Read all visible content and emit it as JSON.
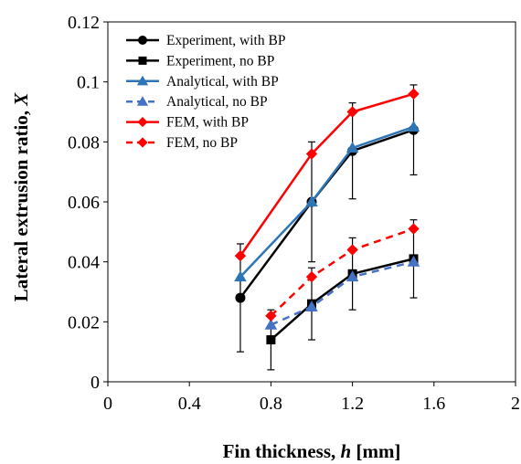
{
  "chart_data": {
    "type": "line",
    "xlabel": {
      "prefix": "Fin thickness, ",
      "var": "h",
      "suffix": " [mm]"
    },
    "ylabel": {
      "prefix": "Lateral extrusion ratio, ",
      "var": "X",
      "suffix": ""
    },
    "xlim": [
      0,
      2
    ],
    "ylim": [
      0,
      0.12
    ],
    "xticks": [
      0,
      0.4,
      0.8,
      1.2,
      1.6,
      2
    ],
    "xtick_labels": [
      "0",
      "0.4",
      "0.8",
      "1.2",
      "1.6",
      "2"
    ],
    "yticks": [
      0,
      0.02,
      0.04,
      0.06,
      0.08,
      0.1,
      0.12
    ],
    "ytick_labels": [
      "0",
      "0.02",
      "0.04",
      "0.06",
      "0.08",
      "0.1",
      "0.12"
    ],
    "grid": false,
    "legend_position": "top-left",
    "series": [
      {
        "name": "Experiment, with BP",
        "color": "#000000",
        "marker": "circle",
        "dashed": false,
        "x": [
          0.65,
          1.0,
          1.2,
          1.5
        ],
        "y": [
          0.028,
          0.06,
          0.077,
          0.084
        ],
        "err": [
          0.018,
          0.02,
          0.016,
          0.015
        ]
      },
      {
        "name": "Experiment, no BP",
        "color": "#000000",
        "marker": "square",
        "dashed": false,
        "x": [
          0.8,
          1.0,
          1.2,
          1.5
        ],
        "y": [
          0.014,
          0.026,
          0.036,
          0.041
        ],
        "err": [
          0.01,
          0.012,
          0.012,
          0.013
        ]
      },
      {
        "name": "Analytical, with BP",
        "color": "#2e75b6",
        "marker": "triangle",
        "dashed": false,
        "x": [
          0.65,
          1.0,
          1.2,
          1.5
        ],
        "y": [
          0.035,
          0.06,
          0.078,
          0.085
        ],
        "err": null
      },
      {
        "name": "Analytical, no BP",
        "color": "#4472c4",
        "marker": "triangle",
        "dashed": true,
        "x": [
          0.8,
          1.0,
          1.2,
          1.5
        ],
        "y": [
          0.019,
          0.025,
          0.035,
          0.04
        ],
        "err": null
      },
      {
        "name": "FEM, with BP",
        "color": "#ff0000",
        "marker": "diamond",
        "dashed": false,
        "x": [
          0.65,
          1.0,
          1.2,
          1.5
        ],
        "y": [
          0.042,
          0.076,
          0.09,
          0.096
        ],
        "err": null
      },
      {
        "name": "FEM, no BP",
        "color": "#ff0000",
        "marker": "diamond",
        "dashed": true,
        "x": [
          0.8,
          1.0,
          1.2,
          1.5
        ],
        "y": [
          0.022,
          0.035,
          0.044,
          0.051
        ],
        "err": null
      }
    ]
  }
}
